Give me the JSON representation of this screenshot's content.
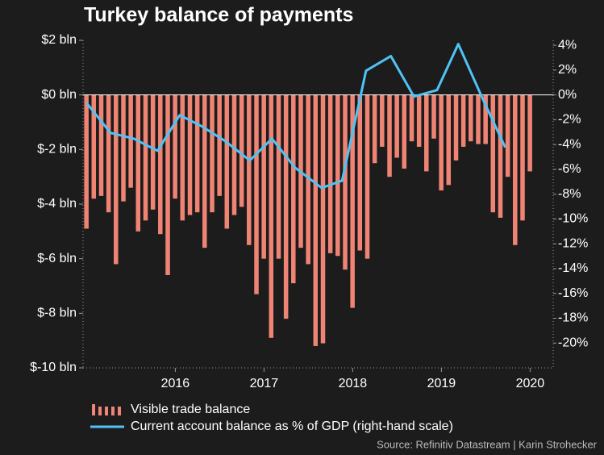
{
  "chart_data": {
    "type": "bar_line_dual",
    "title": "Turkey balance of payments",
    "source": "Source: Refinitiv Datastream | Karin Strohecker",
    "xlim": [
      2014.96,
      2020.26
    ],
    "xticks": [
      2016,
      2017,
      2018,
      2019,
      2020
    ],
    "ylim": [
      -10,
      2
    ],
    "yticks": [
      {
        "value": 2,
        "label": "$2 bln"
      },
      {
        "value": 0,
        "label": "$0 bln"
      },
      {
        "value": -2,
        "label": "$-2 bln"
      },
      {
        "value": -4,
        "label": "$-4 bln"
      },
      {
        "value": -6,
        "label": "$-6 bln"
      },
      {
        "value": -8,
        "label": "$-8 bln"
      },
      {
        "value": -10,
        "label": "$-10 bln"
      }
    ],
    "y2lim": [
      -22,
      4.4
    ],
    "y2ticks": [
      {
        "value": 4,
        "label": "4%"
      },
      {
        "value": 2,
        "label": "2%"
      },
      {
        "value": 0,
        "label": "0%"
      },
      {
        "value": -2,
        "label": "-2%"
      },
      {
        "value": -4,
        "label": "-4%"
      },
      {
        "value": -6,
        "label": "-6%"
      },
      {
        "value": -8,
        "label": "-8%"
      },
      {
        "value": -10,
        "label": "-10%"
      },
      {
        "value": -12,
        "label": "-12%"
      },
      {
        "value": -14,
        "label": "-14%"
      },
      {
        "value": -16,
        "label": "-16%"
      },
      {
        "value": -18,
        "label": "-18%"
      },
      {
        "value": -20,
        "label": "-20%"
      }
    ],
    "series": [
      {
        "name": "Visible trade balance",
        "kind": "bar",
        "color": "#f08474",
        "x": [
          2015.0,
          2015.083,
          2015.167,
          2015.25,
          2015.333,
          2015.417,
          2015.5,
          2015.583,
          2015.667,
          2015.75,
          2015.833,
          2015.917,
          2016.0,
          2016.083,
          2016.167,
          2016.25,
          2016.333,
          2016.417,
          2016.5,
          2016.583,
          2016.667,
          2016.75,
          2016.833,
          2016.917,
          2017.0,
          2017.083,
          2017.167,
          2017.25,
          2017.333,
          2017.417,
          2017.5,
          2017.583,
          2017.667,
          2017.75,
          2017.833,
          2017.917,
          2018.0,
          2018.083,
          2018.167,
          2018.25,
          2018.333,
          2018.417,
          2018.5,
          2018.583,
          2018.667,
          2018.75,
          2018.833,
          2018.917,
          2019.0,
          2019.083,
          2019.167,
          2019.25,
          2019.333,
          2019.417,
          2019.5,
          2019.583,
          2019.667,
          2019.75,
          2019.833,
          2019.917,
          2020.0
        ],
        "values": [
          -4.9,
          -3.8,
          -3.7,
          -4.3,
          -6.2,
          -3.9,
          -3.4,
          -5.0,
          -4.6,
          -4.2,
          -5.1,
          -6.6,
          -3.8,
          -4.6,
          -4.4,
          -4.3,
          -5.6,
          -4.3,
          -3.7,
          -4.9,
          -4.4,
          -4.1,
          -5.5,
          -7.3,
          -6.0,
          -8.9,
          -6.0,
          -8.2,
          -6.9,
          -5.6,
          -6.2,
          -9.2,
          -9.1,
          -5.8,
          -5.9,
          -6.4,
          -7.8,
          -5.7,
          -6.0,
          -2.5,
          -1.9,
          -3.0,
          -2.3,
          -2.7,
          -1.7,
          -1.9,
          -2.8,
          -1.6,
          -3.5,
          -3.3,
          -2.4,
          -1.9,
          -1.7,
          -1.8,
          -1.8,
          -4.3,
          -4.5,
          -3.0,
          -5.5,
          -4.6,
          -2.8
        ]
      },
      {
        "name": "Current account balance as % of GDP (right-hand scale)",
        "kind": "line",
        "axis": "y2",
        "color": "#4fc3f7",
        "x": [
          2015.0,
          2015.27,
          2015.53,
          2015.8,
          2016.05,
          2016.3,
          2016.56,
          2016.84,
          2017.09,
          2017.35,
          2017.65,
          2017.88,
          2018.15,
          2018.43,
          2018.69,
          2018.95,
          2019.19,
          2019.47,
          2019.72
        ],
        "values": [
          -0.65,
          -3.06,
          -3.52,
          -4.5,
          -1.63,
          -2.54,
          -3.71,
          -5.28,
          -3.52,
          -5.86,
          -7.49,
          -6.91,
          1.95,
          3.13,
          -0.13,
          0.39,
          4.1,
          -0.39,
          -4.23
        ]
      }
    ]
  }
}
